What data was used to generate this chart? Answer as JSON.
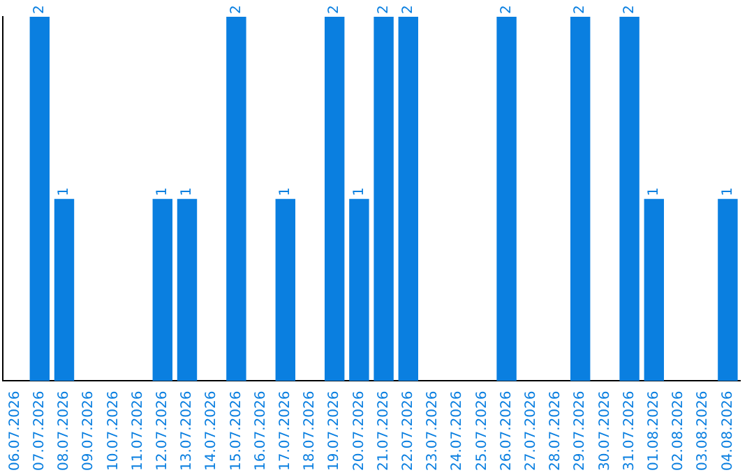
{
  "chart_data": {
    "type": "bar",
    "categories": [
      "06.07.2026",
      "07.07.2026",
      "08.07.2026",
      "09.07.2026",
      "10.07.2026",
      "11.07.2026",
      "12.07.2026",
      "13.07.2026",
      "14.07.2026",
      "15.07.2026",
      "16.07.2026",
      "17.07.2026",
      "18.07.2026",
      "19.07.2026",
      "20.07.2026",
      "21.07.2026",
      "22.07.2026",
      "23.07.2026",
      "24.07.2026",
      "25.07.2026",
      "26.07.2026",
      "27.07.2026",
      "28.07.2026",
      "29.07.2026",
      "30.07.2026",
      "31.07.2026",
      "01.08.2026",
      "02.08.2026",
      "03.08.2026",
      "04.08.2026"
    ],
    "values": [
      0,
      2,
      1,
      0,
      0,
      0,
      1,
      1,
      0,
      2,
      0,
      1,
      0,
      2,
      1,
      2,
      2,
      0,
      0,
      0,
      2,
      0,
      0,
      2,
      0,
      2,
      1,
      0,
      0,
      1
    ],
    "value_labels": [
      null,
      "2",
      "1",
      null,
      null,
      null,
      "1",
      "1",
      null,
      "2",
      null,
      "1",
      null,
      "2",
      "1",
      "2",
      "2",
      null,
      null,
      null,
      "2",
      null,
      null,
      "2",
      null,
      "2",
      "1",
      null,
      null,
      "1"
    ],
    "color": "#0a7fe0",
    "ylim": [
      0,
      2
    ],
    "grid": false,
    "legend": false,
    "tick_labels": "x"
  }
}
